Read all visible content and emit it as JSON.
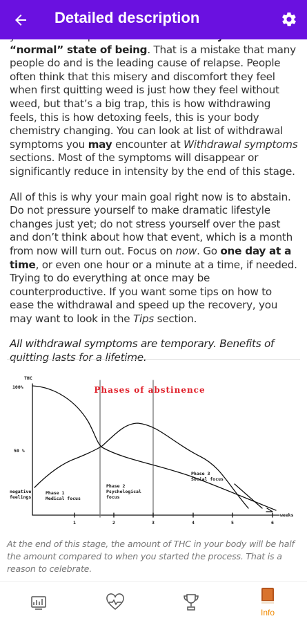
{
  "header": {
    "title": "Detailed description"
  },
  "paragraphs": [
    [
      "yourself in this phase is that ",
      "this is not your “normal” state of being",
      ". That is a mistake that many people do and is the leading cause of relapse. People often think that this misery and discomfort they feel when first quitting weed is just how they feel without weed, but that’s a big trap, this is how withdrawing feels, this is how detoxing feels, this is your body chemistry changing. You can look at list of withdrawal symptoms you ",
      "may",
      " encounter at ",
      "Withdrawal symptoms",
      " sections. Most of the symptoms will disappear or significantly reduce in intensity by the end of this stage."
    ],
    [
      "All of this is why your main goal right now is to abstain. Do not pressure yourself to make dramatic lifestyle changes just yet; do not stress yourself over the past and don’t think about how that event, which is a month from now will turn out. Focus on ",
      "now",
      ". Go ",
      "one day at a time",
      ", or even one hour or a minute at a time, if needed. Trying to do everything at once may be counterproductive. If you want some tips on how to ease the withdrawal and speed up the recovery, you may want to look in the ",
      "Tips",
      " section."
    ]
  ],
  "quote": "All withdrawal symptoms are temporary. Benefits of quitting lasts for a lifetime.",
  "figure": {
    "title": "Phases of abstinence",
    "y_label": "THC",
    "y_top": "100%",
    "y_mid": "50 %",
    "y_bottom": [
      "negative",
      "feelings"
    ],
    "phases": [
      [
        "Phase 1",
        "Medical focus"
      ],
      [
        "Phase 2",
        "Psychological",
        "focus"
      ],
      [
        "Phase 3",
        "Social focus"
      ]
    ],
    "x_ticks": [
      "1",
      "2",
      "3",
      "4",
      "5",
      "6"
    ],
    "x_label": "weeks"
  },
  "caption": "At the end of this stage, the amount of THC in your body will be half the amount compared to when you started the process. That is a reason to celebrate.",
  "nav": {
    "active_label": "Info"
  }
}
